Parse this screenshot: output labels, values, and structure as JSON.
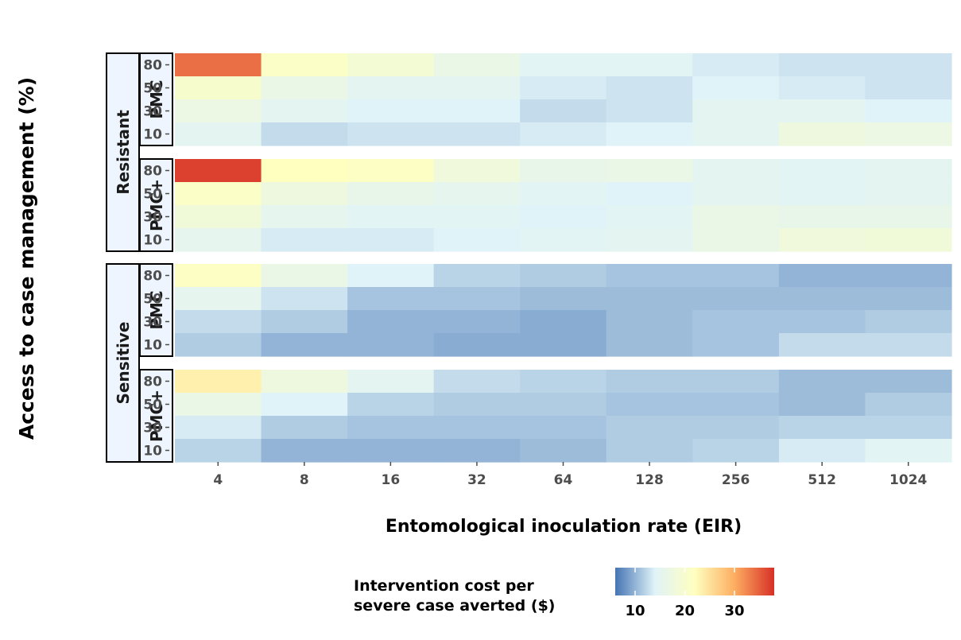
{
  "chart_data": {
    "type": "heatmap",
    "xlabel": "Entomological inoculation rate (EIR)",
    "ylabel": "Access to case management (%)",
    "x_categories": [
      "4",
      "8",
      "16",
      "32",
      "64",
      "128",
      "256",
      "512",
      "1024"
    ],
    "y_categories": [
      "80",
      "50",
      "30",
      "10"
    ],
    "legend": {
      "title_line1": "Intervention cost per",
      "title_line2": "severe case averted ($)",
      "ticks": [
        10,
        20,
        30
      ],
      "range": [
        6,
        38
      ],
      "position": "bottom",
      "colors": [
        "#4575b4",
        "#e0f3f8",
        "#ffffbf",
        "#fdae61",
        "#d73027"
      ]
    },
    "panels": [
      {
        "group": "Resistant",
        "intervention": "PMC",
        "rows": [
          {
            "access": "80",
            "values": [
              34.0,
              21.0,
              19.0,
              16.5,
              14.5,
              14.5,
              13.5,
              13.0,
              13.0
            ]
          },
          {
            "access": "50",
            "values": [
              20.0,
              16.5,
              15.0,
              15.0,
              13.5,
              13.0,
              14.0,
              13.5,
              13.0
            ]
          },
          {
            "access": "30",
            "values": [
              17.0,
              15.0,
              14.0,
              14.0,
              12.5,
              13.0,
              15.0,
              15.0,
              14.0
            ]
          },
          {
            "access": "10",
            "values": [
              15.0,
              12.5,
              13.0,
              13.0,
              13.5,
              14.0,
              15.0,
              17.5,
              17.0
            ]
          }
        ]
      },
      {
        "group": "Resistant",
        "intervention": "PMC+",
        "rows": [
          {
            "access": "80",
            "values": [
              37.0,
              22.0,
              21.5,
              18.0,
              16.0,
              16.5,
              15.0,
              14.5,
              15.0
            ]
          },
          {
            "access": "50",
            "values": [
              21.0,
              17.5,
              16.0,
              15.5,
              14.5,
              14.0,
              15.0,
              14.5,
              15.0
            ]
          },
          {
            "access": "30",
            "values": [
              18.5,
              15.5,
              14.5,
              14.5,
              14.0,
              14.5,
              16.5,
              16.0,
              16.0
            ]
          },
          {
            "access": "10",
            "values": [
              15.5,
              13.5,
              13.5,
              14.0,
              14.5,
              15.0,
              16.5,
              18.0,
              18.5
            ]
          }
        ]
      },
      {
        "group": "Sensitive",
        "intervention": "PMC",
        "rows": [
          {
            "access": "80",
            "values": [
              21.5,
              16.5,
              14.0,
              12.0,
              11.5,
              11.0,
              11.0,
              10.0,
              10.0
            ]
          },
          {
            "access": "50",
            "values": [
              15.5,
              13.0,
              11.0,
              11.0,
              10.5,
              10.5,
              10.5,
              10.5,
              10.5
            ]
          },
          {
            "access": "30",
            "values": [
              12.5,
              11.5,
              10.0,
              10.0,
              9.5,
              10.5,
              11.0,
              11.0,
              11.5
            ]
          },
          {
            "access": "10",
            "values": [
              11.5,
              10.0,
              10.0,
              9.5,
              9.5,
              10.5,
              11.0,
              12.5,
              12.5
            ]
          }
        ]
      },
      {
        "group": "Sensitive",
        "intervention": "PMC+",
        "rows": [
          {
            "access": "80",
            "values": [
              23.5,
              17.5,
              15.0,
              12.5,
              12.0,
              11.5,
              11.5,
              10.5,
              10.5
            ]
          },
          {
            "access": "50",
            "values": [
              16.5,
              14.0,
              12.0,
              11.5,
              11.5,
              11.0,
              11.0,
              10.5,
              11.5
            ]
          },
          {
            "access": "30",
            "values": [
              13.5,
              11.5,
              11.0,
              11.0,
              11.0,
              11.5,
              11.5,
              12.0,
              12.0
            ]
          },
          {
            "access": "10",
            "values": [
              12.0,
              10.0,
              10.0,
              10.0,
              10.5,
              11.5,
              12.0,
              13.5,
              14.5
            ]
          }
        ]
      }
    ]
  }
}
